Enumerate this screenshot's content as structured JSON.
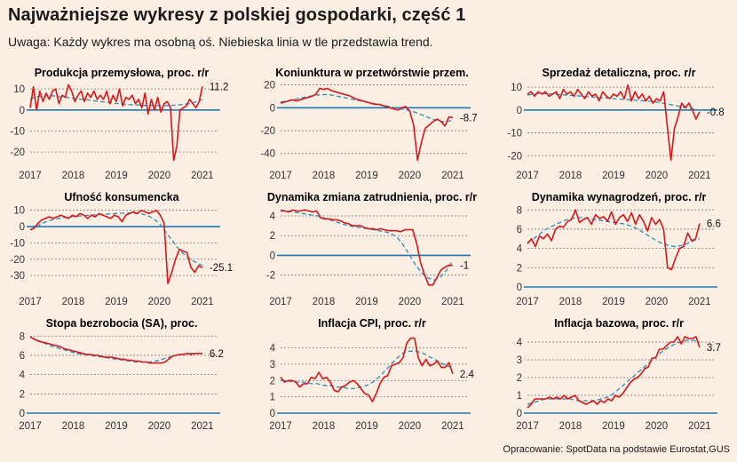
{
  "header": {
    "title": "Najważniejsze wykresy z polskiej gospodarki, część 1",
    "subtitle": "Uwaga: Każdy wykres ma osobną oś. Niebieska linia w tle przedstawia trend."
  },
  "footer": {
    "source": "Opracowanie: SpotData na podstawie Eurostat,GUS"
  },
  "colors": {
    "background": "#fbeee2",
    "series": "#d7191c",
    "trend": "#2b8cbe",
    "zero_line": "#1f78b4",
    "grid": "#7a7a7a"
  },
  "chart_data": [
    {
      "type": "line",
      "title": "Produkcja przemysłowa, proc. r/r",
      "x_ticks": [
        "2017",
        "2018",
        "2019",
        "2020",
        "2021"
      ],
      "xlim": [
        2017,
        2021.25
      ],
      "ylim": [
        -25,
        13
      ],
      "y_ticks": [
        10,
        0,
        -10,
        -20
      ],
      "grid": true,
      "end_label": "11.2",
      "series": [
        {
          "values": [
            1,
            11,
            0,
            9,
            4,
            8,
            5,
            9,
            10,
            3,
            7,
            6,
            12,
            9,
            4,
            7,
            9,
            4,
            8,
            6,
            9,
            5,
            7,
            5,
            9,
            3,
            7,
            4,
            10,
            2,
            6,
            5,
            7,
            3,
            5,
            1,
            8,
            -2,
            5,
            0,
            6,
            -1,
            3,
            4,
            1,
            -24,
            -17,
            0,
            1,
            2,
            5,
            3,
            1,
            4,
            11.2
          ]
        },
        {
          "values": [
            5,
            6,
            6.5,
            6.5,
            6.8,
            6.8,
            6.5,
            6.2,
            6,
            5.8,
            5.5,
            5.2,
            5,
            4.8,
            4.5,
            4.2,
            4,
            3.8,
            3.5,
            3.2,
            3,
            2.8,
            2.6,
            2.5,
            2.4,
            2.3,
            2.2,
            2.2,
            2.1,
            2.1,
            2,
            2.1,
            2.2,
            2.3,
            2.5,
            2.8,
            3,
            3.5,
            4.2,
            5
          ]
        }
      ]
    },
    {
      "type": "line",
      "title": "Koniunktura w przetwórstwie przem.",
      "x_ticks": [
        "2017",
        "2018",
        "2019",
        "2020",
        "2021"
      ],
      "xlim": [
        2017,
        2021.25
      ],
      "ylim": [
        -48,
        22
      ],
      "y_ticks": [
        20,
        0,
        -20,
        -40
      ],
      "grid": true,
      "end_label": "-8.7",
      "series": [
        {
          "values": [
            4,
            5,
            6,
            7,
            6,
            7,
            8,
            9,
            10,
            12,
            17,
            16,
            17,
            15,
            14,
            13,
            12,
            11,
            10,
            8,
            7,
            6,
            5,
            4,
            3,
            3,
            2,
            1,
            0,
            -1,
            -2,
            0,
            1,
            -3,
            -15,
            -46,
            -30,
            -18,
            -15,
            -12,
            -10,
            -12,
            -16,
            -8,
            -8.7
          ]
        },
        {
          "values": [
            5,
            6,
            7,
            8,
            9,
            10,
            11,
            11.5,
            11.5,
            11,
            10,
            9,
            8,
            7,
            6,
            5,
            4,
            3,
            2,
            1,
            0,
            -1,
            -2,
            -3,
            -5,
            -7,
            -9,
            -11,
            -12,
            -12,
            -11
          ]
        }
      ]
    },
    {
      "type": "line",
      "title": "Sprzedaż detaliczna, proc. r/r",
      "x_ticks": [
        "2017",
        "2018",
        "2019",
        "2020",
        "2021"
      ],
      "xlim": [
        2017,
        2021.25
      ],
      "ylim": [
        -23,
        12
      ],
      "y_ticks": [
        10,
        0,
        -10,
        -20
      ],
      "grid": true,
      "end_label": "-0.8",
      "series": [
        {
          "values": [
            7,
            8,
            6,
            8,
            7,
            8,
            6,
            7,
            8,
            5,
            9,
            7,
            8,
            6,
            9,
            7,
            5,
            8,
            6,
            7,
            4,
            8,
            6,
            5,
            7,
            6,
            8,
            5,
            11,
            4,
            8,
            5,
            7,
            4,
            6,
            3,
            5,
            4,
            8,
            -7,
            -22,
            -8,
            -3,
            3,
            1,
            3,
            0,
            -4,
            -0.8
          ]
        },
        {
          "values": [
            6.5,
            7,
            7.2,
            7.2,
            7,
            6.8,
            6.6,
            6.4,
            6.2,
            6,
            5.8,
            5.6,
            5.4,
            5.2,
            5,
            4.8,
            4.6,
            4.4,
            4.2,
            4,
            3.8,
            3.5,
            3,
            2.5,
            2,
            1.5,
            1,
            0.5,
            0
          ]
        }
      ]
    },
    {
      "type": "line",
      "title": "Ufność konsumencka",
      "x_ticks": [
        "2017",
        "2018",
        "2019",
        "2020",
        "2021"
      ],
      "xlim": [
        2017,
        2021.25
      ],
      "ylim": [
        -37,
        12
      ],
      "y_ticks": [
        10,
        0,
        -10,
        -20,
        -30
      ],
      "grid": true,
      "end_label": "-25.1",
      "series": [
        {
          "values": [
            -2,
            -1,
            2,
            4,
            5,
            6,
            5,
            6,
            7,
            6,
            5,
            7,
            6,
            8,
            7,
            5,
            7,
            6,
            8,
            7,
            6,
            5,
            7,
            6,
            3,
            7,
            8,
            9,
            8,
            10,
            9,
            8,
            9,
            10,
            7,
            2,
            -35,
            -28,
            -20,
            -14,
            -15,
            -16,
            -25,
            -28,
            -24,
            -25.1
          ]
        },
        {
          "values": [
            -2,
            0,
            2,
            3.5,
            4.5,
            5.2,
            5.8,
            6.2,
            6.5,
            6.8,
            7,
            7.2,
            7.5,
            7.8,
            8,
            8.2,
            8.3,
            8.2,
            7.8,
            7,
            5,
            2,
            -3,
            -8,
            -13,
            -17,
            -20,
            -22,
            -24
          ]
        }
      ]
    },
    {
      "type": "line",
      "title": "Dynamika zmiana zatrudnienia, proc. r/r",
      "x_ticks": [
        "2017",
        "2018",
        "2019",
        "2020",
        "2021"
      ],
      "xlim": [
        2017,
        2021.25
      ],
      "ylim": [
        -3.2,
        4.9
      ],
      "y_ticks": [
        4,
        2,
        0,
        -2
      ],
      "grid": true,
      "end_label": "-1",
      "series": [
        {
          "values": [
            4.5,
            4.5,
            4.4,
            4.6,
            4.5,
            4.5,
            4.6,
            4.5,
            4.4,
            4.5,
            3.8,
            3.7,
            3.7,
            3.6,
            3.6,
            3.5,
            3.3,
            3.2,
            3,
            3,
            3,
            2.8,
            2.7,
            2.7,
            2.6,
            2.7,
            2.6,
            2.5,
            2.5,
            2.5,
            2.4,
            2.6,
            2.6,
            2.6,
            1.2,
            -0.8,
            -2,
            -3,
            -3,
            -2.3,
            -1.5,
            -1.2,
            -1,
            -1
          ]
        },
        {
          "values": [
            4.6,
            4.5,
            4.4,
            4.3,
            4.2,
            4.1,
            4,
            3.8,
            3.6,
            3.4,
            3.2,
            3,
            2.9,
            2.8,
            2.7,
            2.6,
            2.5,
            2.4,
            2.2,
            1.8,
            1,
            0,
            -1,
            -1.8,
            -2.3,
            -2.5,
            -2.2,
            -1.5,
            -0.5
          ]
        }
      ]
    },
    {
      "type": "line",
      "title": "Dynamika wynagrodzeń, proc. r/r",
      "x_ticks": [
        "2017",
        "2018",
        "2019",
        "2020",
        "2021"
      ],
      "xlim": [
        2017,
        2021.25
      ],
      "ylim": [
        0,
        8.3
      ],
      "y_ticks": [
        8,
        6,
        4,
        2,
        0
      ],
      "grid": true,
      "end_label": "6.6",
      "series": [
        {
          "values": [
            4.5,
            5,
            4.2,
            5.3,
            5,
            5.5,
            4.8,
            6,
            6.3,
            6.2,
            6.8,
            7,
            8,
            6.7,
            7,
            7.2,
            6.5,
            7.5,
            7.1,
            7.3,
            6.8,
            7.8,
            6.5,
            7.2,
            7.5,
            6.8,
            7.7,
            6.5,
            7.5,
            6.8,
            5.8,
            7.2,
            6.5,
            7,
            6,
            2,
            1.8,
            3,
            4,
            4.2,
            5.6,
            4.8,
            5,
            6.6
          ]
        },
        {
          "values": [
            4.6,
            5,
            5.5,
            6,
            6.3,
            6.6,
            6.9,
            7.1,
            7.2,
            7.2,
            7.1,
            7,
            6.9,
            6.8,
            6.7,
            6.6,
            6.5,
            6.3,
            6,
            5.6,
            5.2,
            4.8,
            4.5,
            4.3,
            4.2,
            4.3,
            4.5,
            4.8,
            5
          ]
        }
      ]
    },
    {
      "type": "line",
      "title": "Stopa bezrobocia (SA), proc.",
      "x_ticks": [
        "2017",
        "2018",
        "2019",
        "2020",
        "2021"
      ],
      "xlim": [
        2017,
        2021.25
      ],
      "ylim": [
        0,
        8.3
      ],
      "y_ticks": [
        8,
        6,
        4,
        2,
        0
      ],
      "grid": true,
      "end_label": "6.2",
      "series": [
        {
          "values": [
            7.9,
            7.7,
            7.5,
            7.4,
            7.3,
            7.2,
            7.1,
            7,
            6.9,
            6.7,
            6.6,
            6.5,
            6.4,
            6.3,
            6.2,
            6.1,
            6.1,
            6,
            6,
            5.9,
            5.8,
            5.8,
            5.8,
            5.7,
            5.6,
            5.6,
            5.5,
            5.5,
            5.4,
            5.4,
            5.3,
            5.3,
            5.2,
            5.2,
            5.2,
            5.2,
            5.3,
            5.6,
            5.9,
            6,
            6.1,
            6.1,
            6.2,
            6.1,
            6.2,
            6.2,
            6.2
          ]
        },
        {
          "values": [
            7.9,
            7.6,
            7.3,
            7,
            6.8,
            6.6,
            6.4,
            6.2,
            6.1,
            6,
            5.9,
            5.8,
            5.7,
            5.6,
            5.5,
            5.4,
            5.3,
            5.3,
            5.3,
            5.4,
            5.6,
            5.8,
            6,
            6.1,
            6.2,
            6.2,
            6.2
          ]
        }
      ]
    },
    {
      "type": "line",
      "title": "Inflacja CPI, proc. r/r",
      "x_ticks": [
        "2017",
        "2018",
        "2019",
        "2020",
        "2021"
      ],
      "xlim": [
        2017,
        2021.25
      ],
      "ylim": [
        0,
        4.9
      ],
      "y_ticks": [
        4,
        3,
        2,
        1,
        0
      ],
      "grid": true,
      "end_label": "2.4",
      "series": [
        {
          "values": [
            2.2,
            1.9,
            2,
            2,
            1.9,
            1.6,
            1.8,
            1.8,
            2.2,
            2.1,
            2.5,
            2.1,
            2.2,
            1.9,
            1.4,
            1.3,
            1.6,
            1.7,
            1.9,
            2,
            1.8,
            1.5,
            1.2,
            1.1,
            0.7,
            1.2,
            1.8,
            2.2,
            2.3,
            2.9,
            3,
            3.1,
            3.4,
            4.3,
            4.6,
            4.6,
            3.4,
            2.9,
            3.3,
            2.9,
            3,
            3.2,
            2.8,
            2.8,
            3.1,
            2.4
          ]
        },
        {
          "values": [
            2,
            2,
            1.9,
            1.9,
            1.9,
            1.8,
            1.8,
            1.7,
            1.7,
            1.6,
            1.6,
            1.5,
            1.5,
            1.6,
            1.7,
            1.9,
            2.2,
            2.6,
            3,
            3.4,
            3.7,
            3.8,
            3.8,
            3.7,
            3.5,
            3.3,
            3.1,
            2.9,
            2.8
          ]
        }
      ]
    },
    {
      "type": "line",
      "title": "Inflacja bazowa, proc. r/r",
      "x_ticks": [
        "2017",
        "2018",
        "2019",
        "2020",
        "2021"
      ],
      "xlim": [
        2017,
        2021.25
      ],
      "ylim": [
        0,
        4.5
      ],
      "y_ticks": [
        4,
        3,
        2,
        1,
        0
      ],
      "grid": true,
      "end_label": "3.7",
      "series": [
        {
          "values": [
            0.3,
            0.5,
            0.8,
            0.8,
            0.8,
            0.8,
            0.9,
            0.8,
            0.9,
            0.8,
            1,
            0.8,
            0.9,
            1,
            0.7,
            0.6,
            0.5,
            0.6,
            0.7,
            0.5,
            0.7,
            0.6,
            0.8,
            0.7,
            1,
            0.9,
            1.1,
            1.4,
            1.7,
            1.9,
            2,
            2.2,
            2.5,
            2.6,
            3.1,
            3.1,
            3.6,
            3.6,
            3.8,
            4,
            4,
            4.3,
            3.9,
            4.3,
            4.2,
            4.2,
            4.3,
            3.7
          ]
        },
        {
          "values": [
            0.5,
            0.6,
            0.7,
            0.8,
            0.8,
            0.8,
            0.8,
            0.8,
            0.7,
            0.7,
            0.7,
            0.7,
            0.8,
            0.9,
            1.1,
            1.4,
            1.7,
            2,
            2.3,
            2.6,
            2.9,
            3.2,
            3.5,
            3.7,
            3.9,
            4,
            4.1,
            4.1,
            4
          ]
        }
      ]
    }
  ]
}
